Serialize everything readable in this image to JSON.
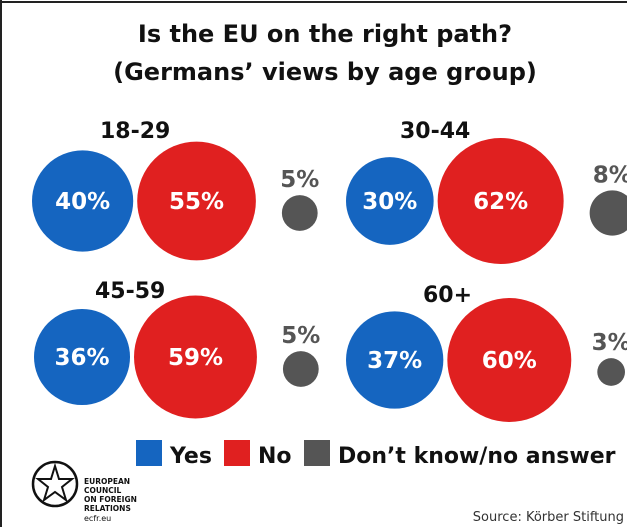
{
  "chart_data": {
    "type": "bubble-panels",
    "title": "Is the EU on the right path?",
    "subtitle": "(Germans’ views by age group)",
    "categories": [
      "Yes",
      "No",
      "Don’t know/no answer"
    ],
    "colors": {
      "Yes": "#1565c0",
      "No": "#e02020",
      "Don’t know/no answer": "#555555"
    },
    "groups": [
      {
        "label": "18-29",
        "values": [
          40,
          55,
          5
        ]
      },
      {
        "label": "30-44",
        "values": [
          30,
          62,
          8
        ]
      },
      {
        "label": "45-59",
        "values": [
          36,
          59,
          5
        ]
      },
      {
        "label": "60+",
        "values": [
          37,
          60,
          3
        ]
      }
    ],
    "value_suffix": "%",
    "legend_position": "bottom"
  },
  "source": "Source: Körber Stiftung",
  "logo": {
    "lines": [
      "EUROPEAN",
      "COUNCIL",
      "ON FOREIGN",
      "RELATIONS"
    ],
    "url_text": "ecfr.eu"
  }
}
